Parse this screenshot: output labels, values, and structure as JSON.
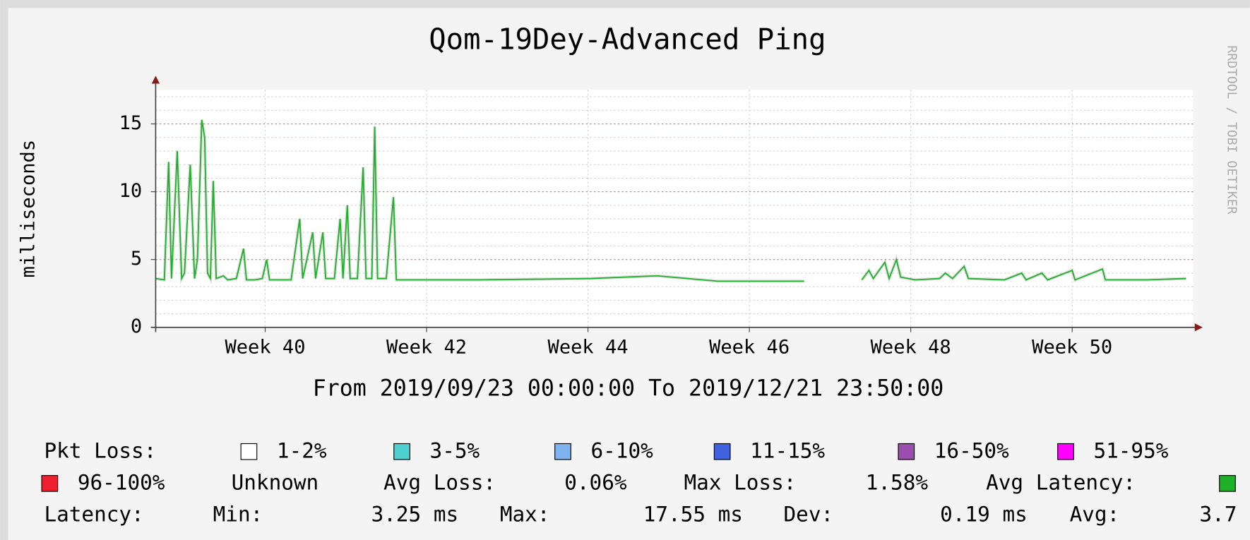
{
  "chart_data": {
    "type": "line",
    "title": "Qom-19Dey-Advanced Ping",
    "subtitle": "From 2019/09/23 00:00:00 To 2019/12/21 23:50:00",
    "y_label": "milliseconds",
    "watermark": "RRDTOOL / TOBI OETIKER",
    "xlim": [
      "2019/09/23 00:00:00",
      "2019/12/21 23:50:00"
    ],
    "xticks": [
      {
        "value": "2019/10/02 12:00",
        "label": "Week 40"
      },
      {
        "value": "2019/10/16 12:00",
        "label": "Week 42"
      },
      {
        "value": "2019/10/30 12:00",
        "label": "Week 44"
      },
      {
        "value": "2019/11/13 12:00",
        "label": "Week 46"
      },
      {
        "value": "2019/11/27 12:00",
        "label": "Week 48"
      },
      {
        "value": "2019/12/11 12:00",
        "label": "Week 50"
      }
    ],
    "ylim": [
      0,
      17.5
    ],
    "yticks": [
      0,
      5,
      10,
      15
    ],
    "grid": true,
    "x": [
      "2019/09/23 00:00",
      "2019/09/23 18:00",
      "2019/09/24 03:00",
      "2019/09/24 09:00",
      "2019/09/24 21:00",
      "2019/09/25 06:00",
      "2019/09/25 12:00",
      "2019/09/26 00:00",
      "2019/09/26 09:00",
      "2019/09/26 15:00",
      "2019/09/27 00:00",
      "2019/09/27 06:00",
      "2019/09/27 12:00",
      "2019/09/27 18:00",
      "2019/09/28 00:00",
      "2019/09/28 06:00",
      "2019/09/28 21:00",
      "2019/09/29 06:00",
      "2019/09/30 00:00",
      "2019/09/30 15:00",
      "2019/09/30 21:00",
      "2019/10/01 15:00",
      "2019/10/02 06:00",
      "2019/10/02 15:00",
      "2019/10/02 21:00",
      "2019/10/04 18:00",
      "2019/10/05 12:00",
      "2019/10/05 18:00",
      "2019/10/06 15:00",
      "2019/10/06 21:00",
      "2019/10/07 12:00",
      "2019/10/07 18:00",
      "2019/10/08 12:00",
      "2019/10/09 00:00",
      "2019/10/09 06:00",
      "2019/10/09 15:00",
      "2019/10/09 21:00",
      "2019/10/10 12:00",
      "2019/10/11 00:00",
      "2019/10/11 06:00",
      "2019/10/11 18:00",
      "2019/10/12 00:00",
      "2019/10/12 06:00",
      "2019/10/13 00:00",
      "2019/10/13 15:00",
      "2019/10/13 21:00",
      "2019/10/21 00:00",
      "2019/10/30 18:00",
      "2019/11/05 12:00",
      "2019/11/10 18:00",
      "2019/11/18 06:00",
      "2019/11/20 00:00",
      "2019/11/23 06:00",
      "2019/11/23 21:00",
      "2019/11/24 06:00",
      "2019/11/25 06:00",
      "2019/11/25 15:00",
      "2019/11/26 06:00",
      "2019/11/26 15:00",
      "2019/11/27 21:00",
      "2019/11/30 00:00",
      "2019/11/30 12:00",
      "2019/12/01 03:00",
      "2019/12/02 03:00",
      "2019/12/02 12:00",
      "2019/12/05 15:00",
      "2019/12/07 03:00",
      "2019/12/07 12:00",
      "2019/12/08 21:00",
      "2019/12/09 09:00",
      "2019/12/11 12:00",
      "2019/12/11 18:00",
      "2019/12/14 03:00",
      "2019/12/14 09:00",
      "2019/12/18 00:00",
      "2019/12/21 09:00"
    ],
    "series": [
      {
        "name": "Avg Latency:",
        "color": "#1fb02a",
        "values": [
          3.6,
          3.5,
          12.2,
          3.6,
          13,
          3.6,
          4,
          12,
          3.6,
          5,
          15.3,
          14,
          4,
          3.6,
          10.8,
          3.6,
          3.8,
          3.5,
          3.6,
          5.8,
          3.5,
          3.5,
          3.6,
          5,
          3.5,
          3.5,
          8,
          3.6,
          7,
          3.6,
          7,
          3.6,
          3.6,
          8,
          3.6,
          9,
          3.6,
          3.6,
          11.8,
          3.6,
          3.6,
          14.8,
          3.6,
          3.6,
          9.6,
          3.5,
          3.5,
          3.6,
          3.8,
          3.4,
          3.4,
          null,
          3.5,
          4.2,
          3.6,
          4.8,
          3.6,
          5,
          3.7,
          3.5,
          3.6,
          4,
          3.6,
          4.5,
          3.6,
          3.5,
          4,
          3.5,
          4,
          3.5,
          4.2,
          3.5,
          4.3,
          3.5,
          3.5,
          3.6
        ]
      }
    ],
    "legend": {
      "label": "Pkt Loss:",
      "items": [
        {
          "name": "1-2%",
          "color": "#ffffff"
        },
        {
          "name": "3-5%",
          "color": "#4fcfcf"
        },
        {
          "name": "6-10%",
          "color": "#7fb4f0"
        },
        {
          "name": "11-15%",
          "color": "#3f62df"
        },
        {
          "name": "16-50%",
          "color": "#9a4fae"
        },
        {
          "name": "51-95%",
          "color": "#ff00ff"
        },
        {
          "name": "96-100%",
          "color": "#ef1f2f"
        }
      ],
      "unknown": "Unknown",
      "stats": [
        {
          "label": "Avg Loss:",
          "value": "0.06%"
        },
        {
          "label": "Max Loss:",
          "value": "1.58%"
        }
      ],
      "latency_label": "Latency:",
      "latency": [
        {
          "label": "Min:",
          "value": "3.25 ms"
        },
        {
          "label": "Max:",
          "value": "17.55 ms"
        },
        {
          "label": "Dev:",
          "value": "0.19 ms"
        },
        {
          "label": "Avg:",
          "value": "3.7"
        }
      ]
    }
  }
}
